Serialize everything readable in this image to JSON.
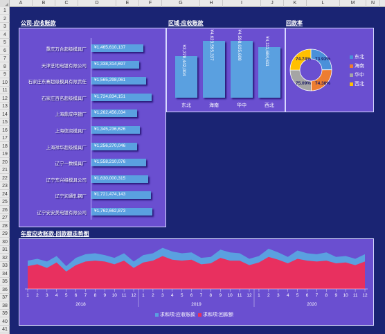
{
  "columns": [
    "A",
    "B",
    "C",
    "D",
    "E",
    "F",
    "G",
    "H",
    "I",
    "J",
    "K",
    "L",
    "M",
    "N"
  ],
  "rows": 41,
  "company_panel": {
    "title": "公司-应收账款",
    "chart_data": {
      "type": "bar",
      "orientation": "horizontal",
      "categories": [
        "重庆万合超级模具厂",
        "天津芝地电镀有限公司",
        "石家庄东寨超级模具有限责任",
        "石家庄百名超级模具厂",
        "上海鼎成电镀厂",
        "上海德润模具厂",
        "上海祥华超级模具厂",
        "辽宁一数模具厂",
        "辽宁东兴组模具公司",
        "辽宁润通轧钢厂",
        "辽宁安安美电镀有限公司"
      ],
      "values": [
        1465610137,
        1338314697,
        1565298061,
        1724834151,
        1262456034,
        1345236626,
        1256270046,
        1558210076,
        1630000315,
        1721474143,
        1762662873
      ],
      "value_labels": [
        "¥1,465,610,137",
        "¥1,338,314,697",
        "¥1,565,298,061",
        "¥1,724,834,151",
        "¥1,262,456,034",
        "¥1,345,236,626",
        "¥1,256,270,046",
        "¥1,558,210,076",
        "¥1,630,000,315",
        "¥1,721,474,143",
        "¥1,762,662,873"
      ]
    }
  },
  "region_panel": {
    "title": "区域-应收账款",
    "chart_data": {
      "type": "bar",
      "categories": [
        "东北",
        "海南",
        "华中",
        "西北"
      ],
      "values": [
        3378442004,
        4623595337,
        4598635608,
        4111684611
      ],
      "value_labels": [
        "¥3,378,442,004",
        "¥4,623,595,337",
        "¥4,598,635,608",
        "¥4,111,684,611"
      ]
    }
  },
  "payback_panel": {
    "title": "回款率",
    "chart_data": {
      "type": "pie",
      "donut": true,
      "categories": [
        "东北",
        "海南",
        "华中",
        "西北"
      ],
      "values": [
        73.93,
        74.38,
        75.09,
        74.74
      ],
      "value_labels": [
        "73.93%",
        "74.38%",
        "75.09%",
        "74.74%"
      ],
      "colors": [
        "#4a90d9",
        "#ed7d31",
        "#a5a5a5",
        "#ffc000"
      ]
    }
  },
  "trend_panel": {
    "title": "年度应收账款-回款额走势图",
    "chart_data": {
      "type": "area",
      "months": [
        "1",
        "2",
        "3",
        "4",
        "5",
        "6",
        "7",
        "8",
        "9",
        "10",
        "11",
        "12"
      ],
      "years": [
        "2018",
        "2019",
        "2020"
      ],
      "series": [
        {
          "name": "求和项:应收账款",
          "color": "#5aa0e0",
          "values": [
            62,
            66,
            60,
            72,
            50,
            68,
            76,
            78,
            74,
            68,
            78,
            60,
            74,
            78,
            90,
            82,
            78,
            80,
            68,
            70,
            86,
            80,
            78,
            66,
            72,
            88,
            80,
            70,
            84,
            78,
            76,
            80,
            70,
            72,
            66,
            76
          ]
        },
        {
          "name": "求和项:回款额",
          "color": "#e8305f",
          "values": [
            50,
            54,
            46,
            58,
            38,
            52,
            60,
            62,
            60,
            54,
            62,
            46,
            58,
            62,
            72,
            64,
            62,
            64,
            54,
            56,
            68,
            62,
            62,
            52,
            58,
            70,
            64,
            56,
            66,
            62,
            60,
            62,
            56,
            58,
            52,
            60
          ]
        }
      ],
      "legend": [
        "求和项:应收账款",
        "求和项:回款额"
      ],
      "legend_position": "bottom"
    }
  }
}
